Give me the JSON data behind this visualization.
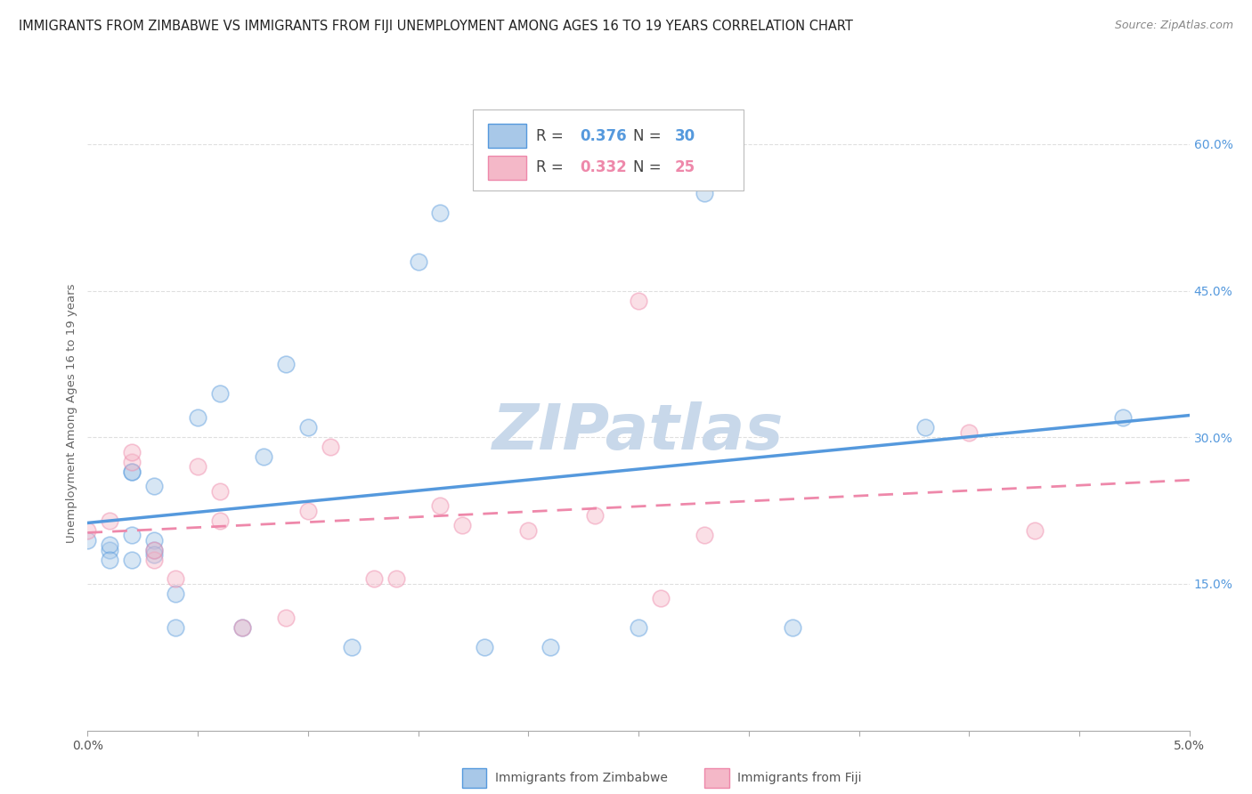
{
  "title": "IMMIGRANTS FROM ZIMBABWE VS IMMIGRANTS FROM FIJI UNEMPLOYMENT AMONG AGES 16 TO 19 YEARS CORRELATION CHART",
  "source": "Source: ZipAtlas.com",
  "ylabel": "Unemployment Among Ages 16 to 19 years",
  "ylabel_right_labels": [
    "15.0%",
    "30.0%",
    "45.0%",
    "60.0%"
  ],
  "ylabel_right_positions": [
    0.15,
    0.3,
    0.45,
    0.6
  ],
  "watermark": "ZIPatlas",
  "legend_r1": "R = 0.376",
  "legend_n1": "N = 30",
  "legend_r2": "R = 0.332",
  "legend_n2": "N = 25",
  "legend_label1": "Immigrants from Zimbabwe",
  "legend_label2": "Immigrants from Fiji",
  "color_zimbabwe": "#a8c8e8",
  "color_fiji": "#f4b8c8",
  "line_color_zimbabwe": "#5599dd",
  "line_color_fiji": "#ee88aa",
  "watermark_color": "#c8d8ea",
  "xlim": [
    0.0,
    0.05
  ],
  "ylim": [
    0.0,
    0.65
  ],
  "zimbabwe_x": [
    0.0,
    0.001,
    0.001,
    0.001,
    0.002,
    0.002,
    0.002,
    0.002,
    0.003,
    0.003,
    0.003,
    0.003,
    0.004,
    0.004,
    0.005,
    0.006,
    0.007,
    0.008,
    0.009,
    0.01,
    0.012,
    0.015,
    0.016,
    0.018,
    0.021,
    0.025,
    0.028,
    0.032,
    0.038,
    0.047
  ],
  "zimbabwe_y": [
    0.195,
    0.185,
    0.19,
    0.175,
    0.2,
    0.175,
    0.265,
    0.265,
    0.25,
    0.185,
    0.195,
    0.18,
    0.14,
    0.105,
    0.32,
    0.345,
    0.105,
    0.28,
    0.375,
    0.31,
    0.085,
    0.48,
    0.53,
    0.085,
    0.085,
    0.105,
    0.55,
    0.105,
    0.31,
    0.32
  ],
  "fiji_x": [
    0.0,
    0.001,
    0.002,
    0.002,
    0.003,
    0.003,
    0.004,
    0.005,
    0.006,
    0.006,
    0.007,
    0.009,
    0.01,
    0.011,
    0.013,
    0.014,
    0.016,
    0.017,
    0.02,
    0.023,
    0.025,
    0.026,
    0.028,
    0.04,
    0.043
  ],
  "fiji_y": [
    0.205,
    0.215,
    0.275,
    0.285,
    0.175,
    0.185,
    0.155,
    0.27,
    0.215,
    0.245,
    0.105,
    0.115,
    0.225,
    0.29,
    0.155,
    0.155,
    0.23,
    0.21,
    0.205,
    0.22,
    0.44,
    0.135,
    0.2,
    0.305,
    0.205
  ],
  "scatter_size": 180,
  "scatter_alpha": 0.45,
  "scatter_linewidth": 1.2,
  "title_fontsize": 10.5,
  "axis_label_fontsize": 9.5,
  "tick_fontsize": 10,
  "legend_fontsize": 12,
  "watermark_fontsize": 52,
  "background_color": "#ffffff",
  "grid_color": "#d8d8d8",
  "grid_linestyle": "--",
  "grid_linewidth": 0.8,
  "grid_alpha": 0.8
}
